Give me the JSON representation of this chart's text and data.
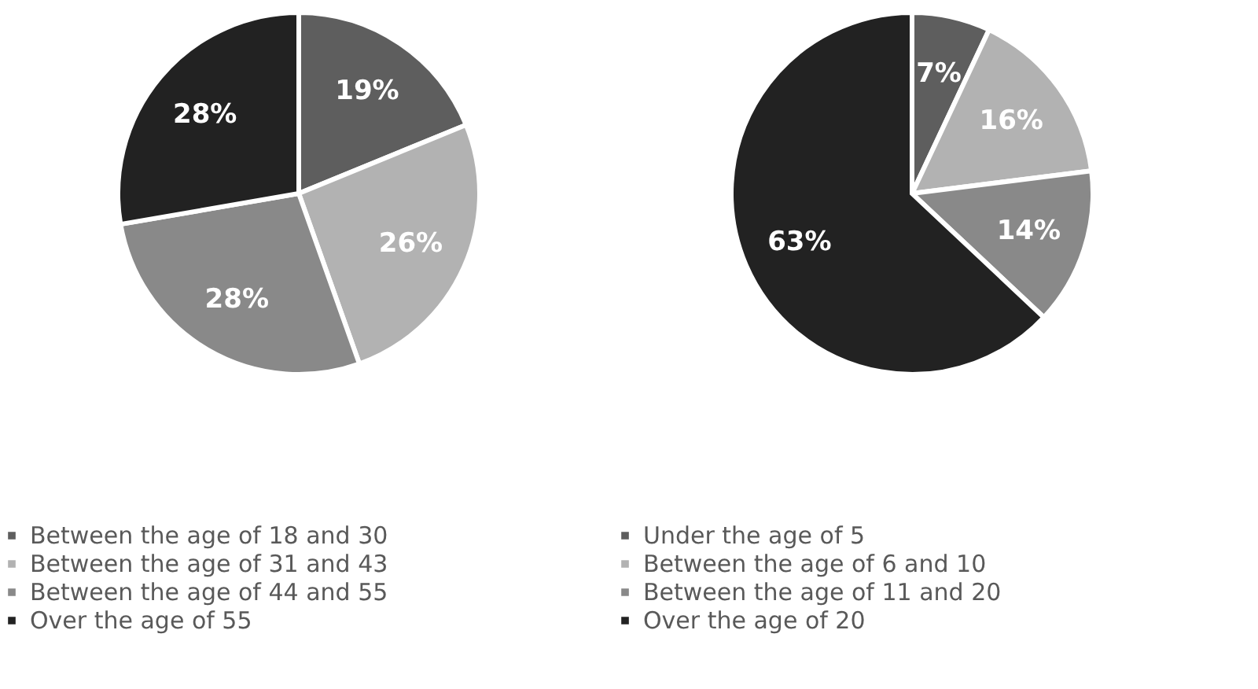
{
  "chart_data": [
    {
      "type": "pie",
      "categories": [
        "Between the age of 18 and 30",
        "Between the age of 31 and 43",
        "Between the age of 44 and 55",
        "Over the age of 55"
      ],
      "values": [
        19,
        26,
        28,
        28
      ],
      "value_labels": [
        "19%",
        "26%",
        "28%",
        "28%"
      ],
      "colors": [
        "#5e5e5e",
        "#b2b2b2",
        "#898989",
        "#222222"
      ],
      "legend": "bottom"
    },
    {
      "type": "pie",
      "categories": [
        "Under the age of 5",
        "Between the age of 6 and 10",
        "Between the age of 11 and 20",
        "Over the age of 20"
      ],
      "values": [
        7,
        16,
        14,
        63
      ],
      "value_labels": [
        "7%",
        "16%",
        "14%",
        "63%"
      ],
      "colors": [
        "#5e5e5e",
        "#b2b2b2",
        "#898989",
        "#222222"
      ],
      "legend": "bottom"
    }
  ]
}
